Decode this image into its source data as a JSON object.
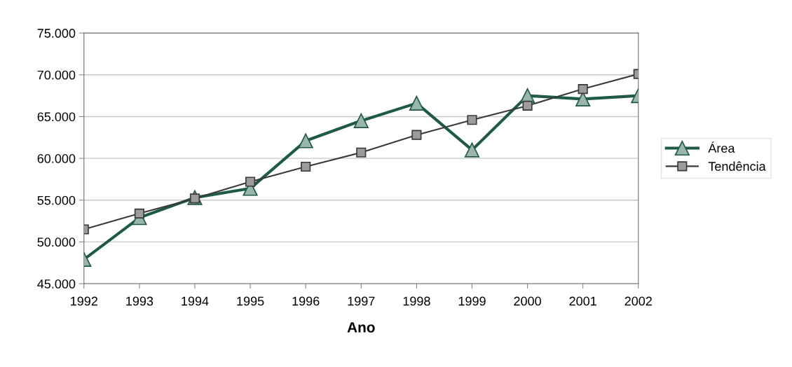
{
  "chart_data": {
    "type": "line",
    "xlabel": "Ano",
    "categories": [
      "1992",
      "1993",
      "1994",
      "1995",
      "1996",
      "1997",
      "1998",
      "1999",
      "2000",
      "2001",
      "2002"
    ],
    "series": [
      {
        "name": "Área",
        "color": "#1e5a46",
        "marker": "triangle",
        "values": [
          47900,
          52900,
          55300,
          56400,
          62100,
          64500,
          66600,
          61000,
          67500,
          67100,
          67500
        ]
      },
      {
        "name": "Tendência",
        "color": "#3a3a3a",
        "marker": "square",
        "values": [
          51500,
          53400,
          55200,
          57200,
          59000,
          60700,
          62800,
          64600,
          66300,
          68300,
          70100
        ]
      }
    ],
    "ylim": [
      45000,
      75000
    ],
    "yticks": [
      {
        "value": 45000,
        "label": "45.000"
      },
      {
        "value": 50000,
        "label": "50.000"
      },
      {
        "value": 55000,
        "label": "55.000"
      },
      {
        "value": 60000,
        "label": "60.000"
      },
      {
        "value": 65000,
        "label": "65.000"
      },
      {
        "value": 70000,
        "label": "70.000"
      },
      {
        "value": 75000,
        "label": "75.000"
      }
    ],
    "grid": "y",
    "legend": "right"
  }
}
